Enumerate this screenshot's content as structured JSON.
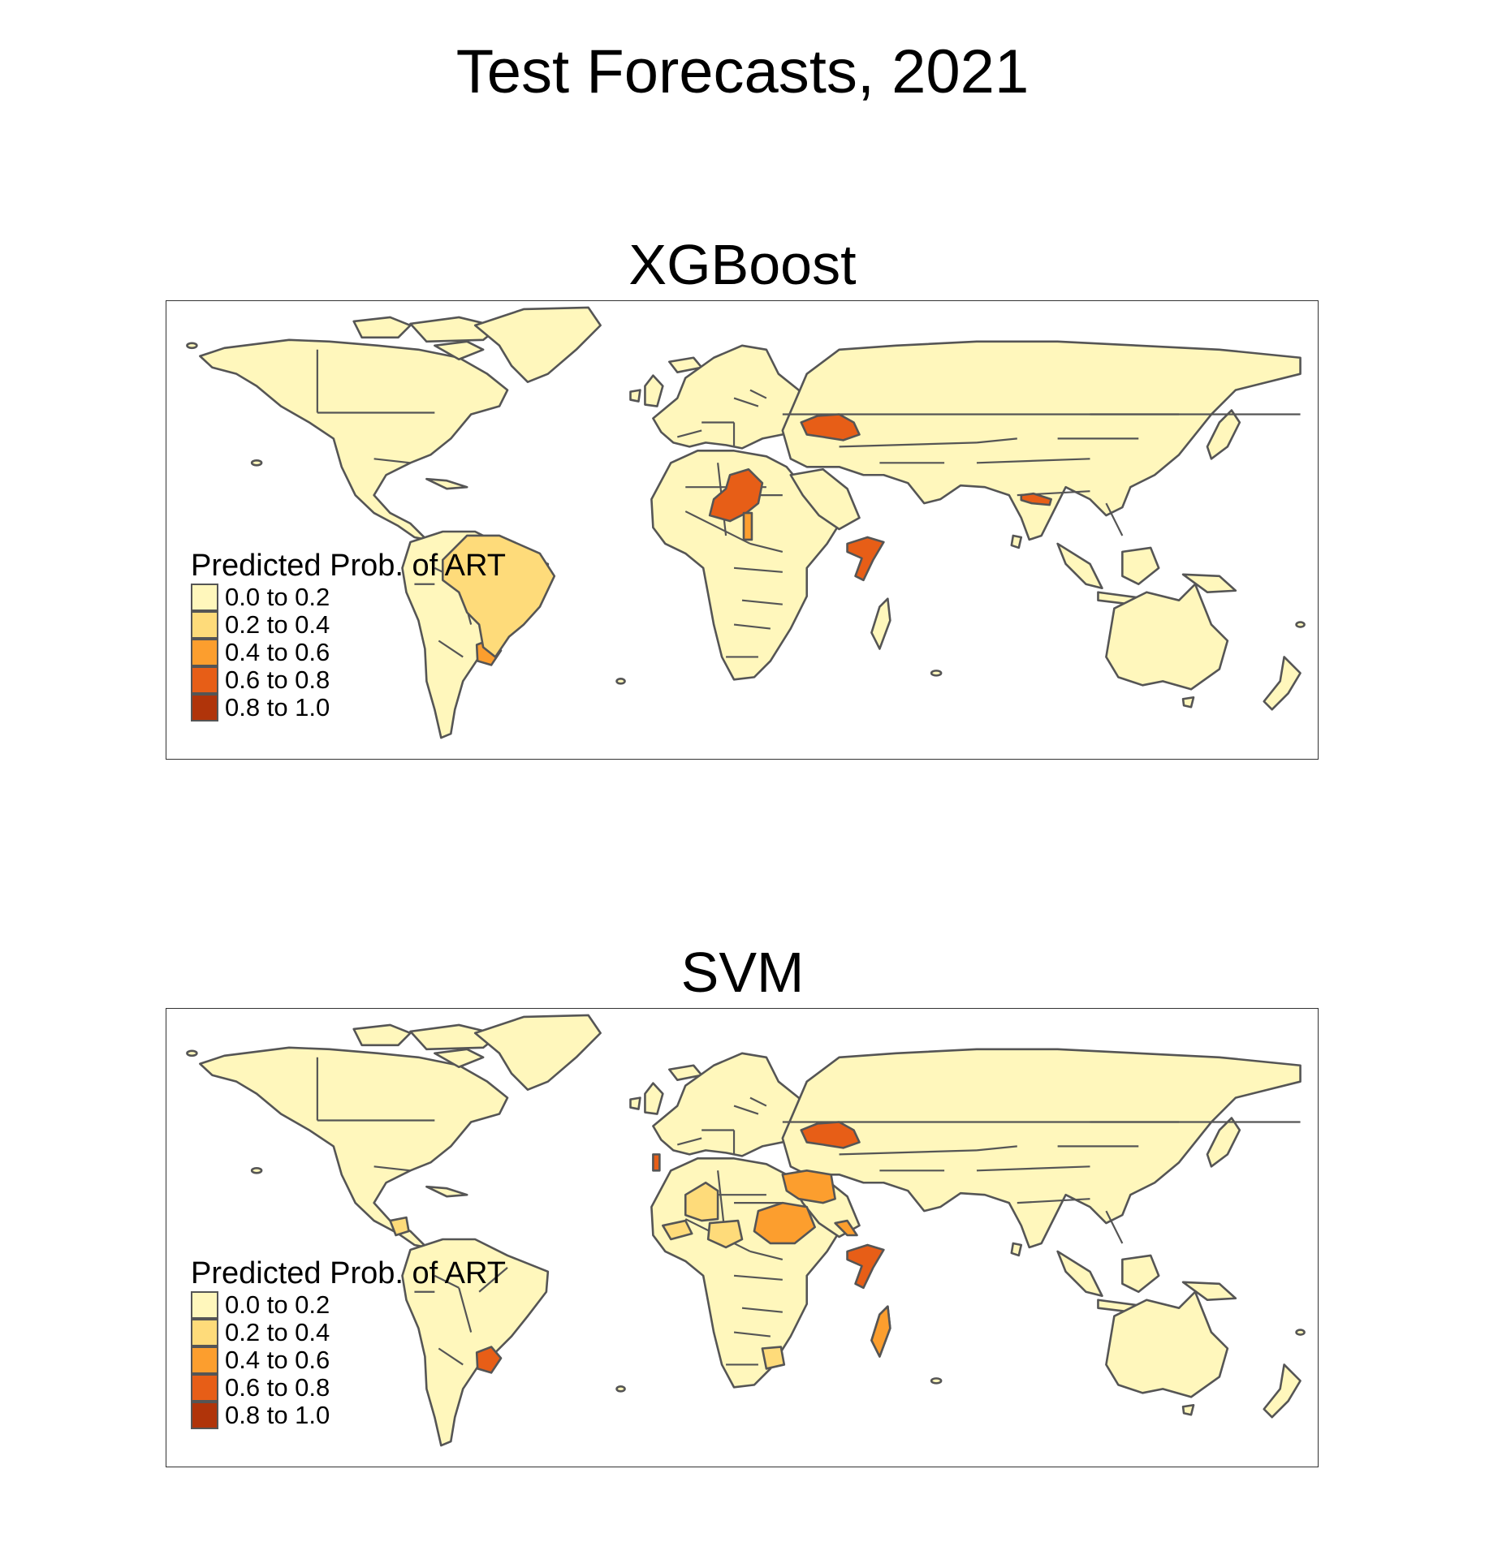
{
  "title": "Test Forecasts, 2021",
  "legend": {
    "title": "Predicted Prob. of ART",
    "classes": [
      {
        "label": "0.0 to 0.2",
        "color": "#FFF7BC"
      },
      {
        "label": "0.2 to 0.4",
        "color": "#FEDB7A"
      },
      {
        "label": "0.4 to 0.6",
        "color": "#FC9E2E"
      },
      {
        "label": "0.6 to 0.8",
        "color": "#E75E17"
      },
      {
        "label": "0.8 to 1.0",
        "color": "#B0340A"
      }
    ]
  },
  "panels": [
    {
      "title": "XGBoost",
      "highlighted_regions": [
        {
          "region": "Ukraine",
          "class": "0.6 to 0.8"
        },
        {
          "region": "Mali",
          "class": "0.6 to 0.8"
        },
        {
          "region": "Nepal",
          "class": "0.6 to 0.8"
        },
        {
          "region": "Somalia",
          "class": "0.6 to 0.8"
        },
        {
          "region": "Ghana",
          "class": "0.4 to 0.6"
        },
        {
          "region": "Paraguay",
          "class": "0.4 to 0.6"
        },
        {
          "region": "Brazil",
          "class": "0.2 to 0.4"
        }
      ]
    },
    {
      "title": "SVM",
      "highlighted_regions": [
        {
          "region": "Ukraine",
          "class": "0.6 to 0.8"
        },
        {
          "region": "Paraguay",
          "class": "0.6 to 0.8"
        },
        {
          "region": "Somalia",
          "class": "0.6 to 0.8"
        },
        {
          "region": "Portugal",
          "class": "0.6 to 0.8"
        },
        {
          "region": "Niger",
          "class": "0.4 to 0.6"
        },
        {
          "region": "Libya",
          "class": "0.4 to 0.6"
        },
        {
          "region": "Eritrea",
          "class": "0.4 to 0.6"
        },
        {
          "region": "Madagascar",
          "class": "0.4 to 0.6"
        },
        {
          "region": "Mauritania",
          "class": "0.2 to 0.4"
        },
        {
          "region": "Senegal",
          "class": "0.2 to 0.4"
        },
        {
          "region": "Burkina Faso",
          "class": "0.2 to 0.4"
        },
        {
          "region": "Nicaragua",
          "class": "0.2 to 0.4"
        },
        {
          "region": "Lesotho",
          "class": "0.2 to 0.4"
        }
      ]
    }
  ]
}
